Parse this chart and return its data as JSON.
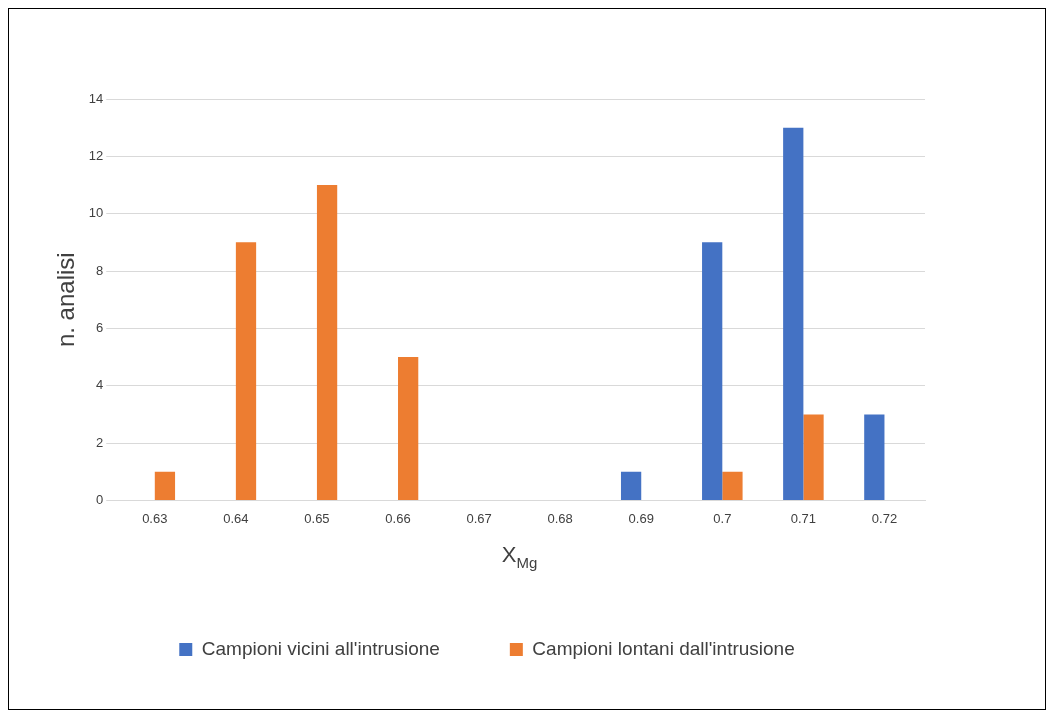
{
  "chart_data": {
    "type": "bar",
    "xlabel": "X$_{Mg}$",
    "ylabel": "n. analisi",
    "categories": [
      "0.63",
      "0.64",
      "0.65",
      "0.66",
      "0.67",
      "0.68",
      "0.69",
      "0.7",
      "0.71",
      "0.72"
    ],
    "series": [
      {
        "name": "Campioni vicini all'intrusione",
        "color": "#4472c4",
        "values": [
          0,
          0,
          0,
          0,
          0,
          0,
          1,
          9,
          13,
          3
        ]
      },
      {
        "name": "Campioni lontani dall'intrusione",
        "color": "#ed7d31",
        "values": [
          1,
          9,
          11,
          5,
          0,
          0,
          0,
          1,
          3,
          0
        ]
      }
    ],
    "ylim": [
      0,
      14
    ],
    "yticks": [
      0,
      2,
      4,
      6,
      8,
      10,
      12,
      14
    ],
    "grid": "y",
    "legend": "bottom"
  }
}
